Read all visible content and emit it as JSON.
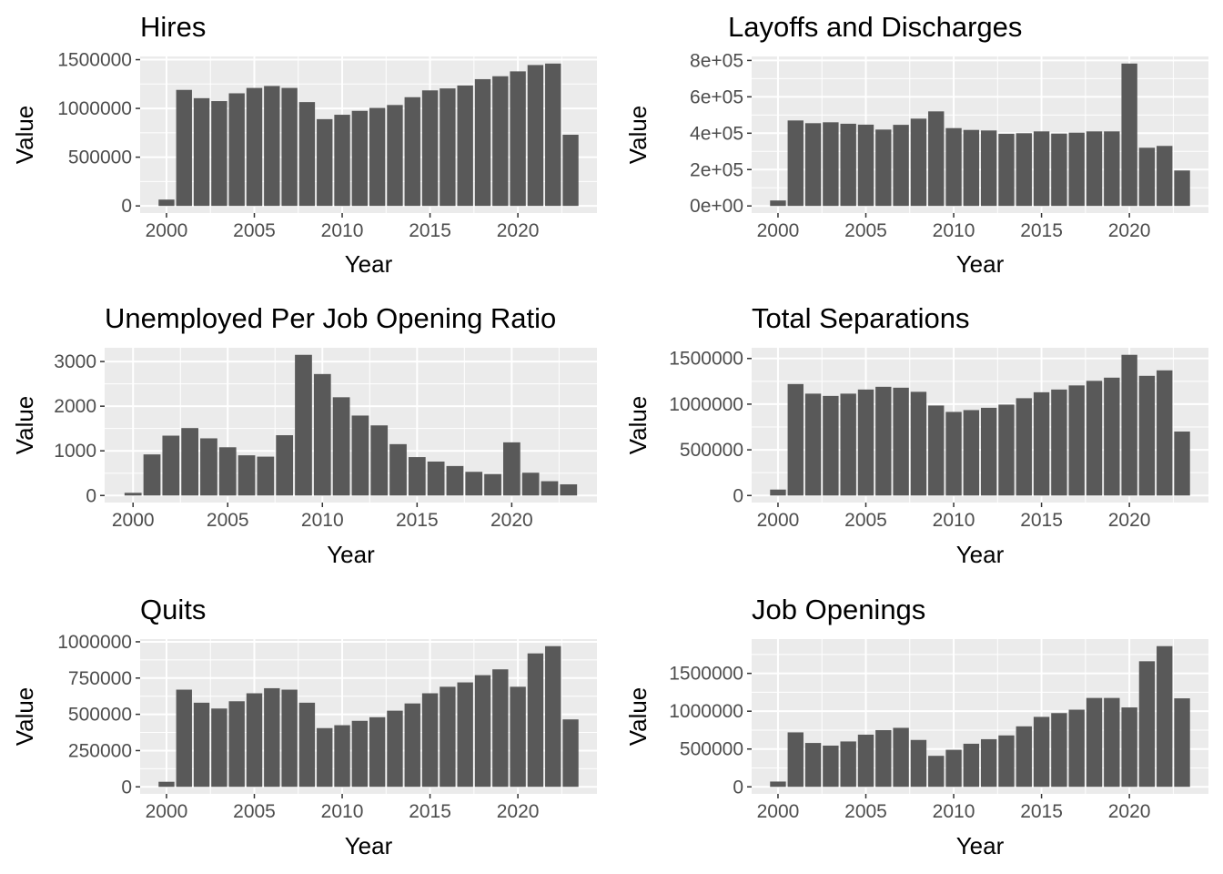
{
  "figure": {
    "colors": {
      "bar": "#595959",
      "panel_bg": "#ebebeb",
      "grid": "#ffffff",
      "tick": "#333333",
      "tick_label": "#4d4d4d"
    }
  },
  "chart_data": [
    {
      "type": "bar",
      "title": "Hires",
      "xlabel": "Year",
      "ylabel": "Value",
      "grid": true,
      "x": [
        2000,
        2001,
        2002,
        2003,
        2004,
        2005,
        2006,
        2007,
        2008,
        2009,
        2010,
        2011,
        2012,
        2013,
        2014,
        2015,
        2016,
        2017,
        2018,
        2019,
        2020,
        2021,
        2022,
        2023
      ],
      "values": [
        65000,
        1190000,
        1105000,
        1075000,
        1155000,
        1210000,
        1230000,
        1210000,
        1065000,
        890000,
        935000,
        975000,
        1005000,
        1035000,
        1115000,
        1185000,
        1205000,
        1235000,
        1300000,
        1330000,
        1380000,
        1445000,
        1460000,
        730000
      ],
      "xlim": [
        1998.5,
        2024.5
      ],
      "ylim": [
        -73000,
        1533000
      ],
      "x_ticks": [
        2000,
        2005,
        2010,
        2015,
        2020
      ],
      "x_tick_labels": [
        "2000",
        "2005",
        "2010",
        "2015",
        "2020"
      ],
      "y_ticks": [
        0,
        500000,
        1000000,
        1500000
      ],
      "y_tick_labels": [
        "0",
        "500000",
        "1000000",
        "1500000"
      ]
    },
    {
      "type": "bar",
      "title": "Layoffs and Discharges",
      "xlabel": "Year",
      "ylabel": "Value",
      "grid": true,
      "x": [
        2000,
        2001,
        2002,
        2003,
        2004,
        2005,
        2006,
        2007,
        2008,
        2009,
        2010,
        2011,
        2012,
        2013,
        2014,
        2015,
        2016,
        2017,
        2018,
        2019,
        2020,
        2021,
        2022,
        2023
      ],
      "values": [
        30000,
        470000,
        455000,
        460000,
        452000,
        447000,
        420000,
        446000,
        480000,
        520000,
        428000,
        418000,
        415000,
        397000,
        400000,
        410000,
        398000,
        403000,
        410000,
        410000,
        783000,
        320000,
        330000,
        195000
      ],
      "xlim": [
        1998.5,
        2024.5
      ],
      "ylim": [
        -39000,
        822000
      ],
      "x_ticks": [
        2000,
        2005,
        2010,
        2015,
        2020
      ],
      "x_tick_labels": [
        "2000",
        "2005",
        "2010",
        "2015",
        "2020"
      ],
      "y_ticks": [
        0,
        200000,
        400000,
        600000,
        800000
      ],
      "y_tick_labels": [
        "0e+00",
        "2e+05",
        "4e+05",
        "6e+05",
        "8e+05"
      ]
    },
    {
      "type": "bar",
      "title": "Unemployed Per Job Opening Ratio",
      "xlabel": "Year",
      "ylabel": "Value",
      "grid": true,
      "x": [
        2000,
        2001,
        2002,
        2003,
        2004,
        2005,
        2006,
        2007,
        2008,
        2009,
        2010,
        2011,
        2012,
        2013,
        2014,
        2015,
        2016,
        2017,
        2018,
        2019,
        2020,
        2021,
        2022,
        2023
      ],
      "values": [
        60,
        920,
        1340,
        1510,
        1280,
        1080,
        900,
        870,
        1350,
        3150,
        2720,
        2200,
        1790,
        1570,
        1150,
        860,
        760,
        660,
        530,
        480,
        1190,
        510,
        320,
        250
      ],
      "xlim": [
        1998.5,
        2024.5
      ],
      "ylim": [
        -158,
        3308
      ],
      "x_ticks": [
        2000,
        2005,
        2010,
        2015,
        2020
      ],
      "x_tick_labels": [
        "2000",
        "2005",
        "2010",
        "2015",
        "2020"
      ],
      "y_ticks": [
        0,
        1000,
        2000,
        3000
      ],
      "y_tick_labels": [
        "0",
        "1000",
        "2000",
        "3000"
      ]
    },
    {
      "type": "bar",
      "title": "Total Separations",
      "xlabel": "Year",
      "ylabel": "Value",
      "grid": true,
      "x": [
        2000,
        2001,
        2002,
        2003,
        2004,
        2005,
        2006,
        2007,
        2008,
        2009,
        2010,
        2011,
        2012,
        2013,
        2014,
        2015,
        2016,
        2017,
        2018,
        2019,
        2020,
        2021,
        2022,
        2023
      ],
      "values": [
        65000,
        1220000,
        1115000,
        1090000,
        1115000,
        1160000,
        1190000,
        1180000,
        1135000,
        985000,
        915000,
        935000,
        960000,
        995000,
        1065000,
        1130000,
        1160000,
        1205000,
        1255000,
        1290000,
        1540000,
        1310000,
        1370000,
        700000
      ],
      "xlim": [
        1998.5,
        2024.5
      ],
      "ylim": [
        -77000,
        1617000
      ],
      "x_ticks": [
        2000,
        2005,
        2010,
        2015,
        2020
      ],
      "x_tick_labels": [
        "2000",
        "2005",
        "2010",
        "2015",
        "2020"
      ],
      "y_ticks": [
        0,
        500000,
        1000000,
        1500000
      ],
      "y_tick_labels": [
        "0",
        "500000",
        "1000000",
        "1500000"
      ]
    },
    {
      "type": "bar",
      "title": "Quits",
      "xlabel": "Year",
      "ylabel": "Value",
      "grid": true,
      "x": [
        2000,
        2001,
        2002,
        2003,
        2004,
        2005,
        2006,
        2007,
        2008,
        2009,
        2010,
        2011,
        2012,
        2013,
        2014,
        2015,
        2016,
        2017,
        2018,
        2019,
        2020,
        2021,
        2022,
        2023
      ],
      "values": [
        35000,
        670000,
        580000,
        540000,
        590000,
        645000,
        680000,
        670000,
        580000,
        405000,
        425000,
        455000,
        480000,
        525000,
        575000,
        645000,
        690000,
        720000,
        770000,
        810000,
        690000,
        920000,
        970000,
        465000
      ],
      "xlim": [
        1998.5,
        2024.5
      ],
      "ylim": [
        -48500,
        1018500
      ],
      "x_ticks": [
        2000,
        2005,
        2010,
        2015,
        2020
      ],
      "x_tick_labels": [
        "2000",
        "2005",
        "2010",
        "2015",
        "2020"
      ],
      "y_ticks": [
        0,
        250000,
        500000,
        750000,
        1000000
      ],
      "y_tick_labels": [
        "0",
        "250000",
        "500000",
        "750000",
        "1000000"
      ]
    },
    {
      "type": "bar",
      "title": "Job Openings",
      "xlabel": "Year",
      "ylabel": "Value",
      "grid": true,
      "x": [
        2000,
        2001,
        2002,
        2003,
        2004,
        2005,
        2006,
        2007,
        2008,
        2009,
        2010,
        2011,
        2012,
        2013,
        2014,
        2015,
        2016,
        2017,
        2018,
        2019,
        2020,
        2021,
        2022,
        2023
      ],
      "values": [
        70000,
        720000,
        580000,
        545000,
        600000,
        690000,
        750000,
        780000,
        620000,
        410000,
        490000,
        570000,
        630000,
        680000,
        800000,
        925000,
        975000,
        1020000,
        1175000,
        1175000,
        1050000,
        1660000,
        1860000,
        1170000
      ],
      "xlim": [
        1998.5,
        2024.5
      ],
      "ylim": [
        -93000,
        1953000
      ],
      "x_ticks": [
        2000,
        2005,
        2010,
        2015,
        2020
      ],
      "x_tick_labels": [
        "2000",
        "2005",
        "2010",
        "2015",
        "2020"
      ],
      "y_ticks": [
        0,
        500000,
        1000000,
        1500000
      ],
      "y_tick_labels": [
        "0",
        "500000",
        "1000000",
        "1500000"
      ]
    }
  ]
}
